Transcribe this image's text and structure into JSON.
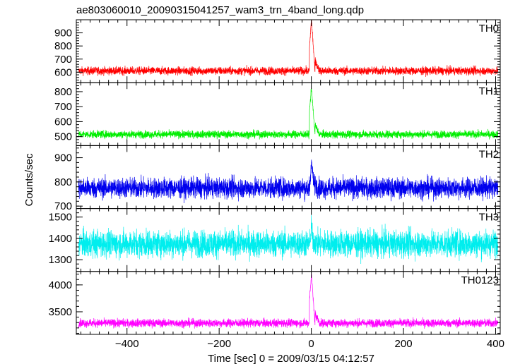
{
  "chart_data": {
    "type": "line",
    "title": "ae803060010_20090315041257_wam3_trn_4band_long.qdp",
    "xlabel": "Time [sec] 0 = 2009/03/15 04:12:57",
    "ylabel": "Counts/sec",
    "xlim": [
      -510,
      410
    ],
    "x_ticks": [
      -400,
      -200,
      0,
      200,
      400
    ],
    "x_tick_labels": [
      "−400",
      "−200",
      "0",
      "200",
      "400"
    ],
    "grid": false,
    "panels": [
      {
        "label": "TH0",
        "color": "#ff0000",
        "ylim": [
          520,
          1000
        ],
        "yticks": [
          600,
          700,
          800,
          900
        ],
        "ytick_labels": [
          "600",
          "700",
          "800",
          "900"
        ],
        "baseline": 610,
        "noise": 22,
        "peak": 1000,
        "burst_start": -4,
        "burst_end": 8
      },
      {
        "label": "TH1",
        "color": "#00ee00",
        "ylim": [
          440,
          860
        ],
        "yticks": [
          500,
          600,
          700,
          800
        ],
        "ytick_labels": [
          "500",
          "600",
          "700",
          "800"
        ],
        "baseline": 515,
        "noise": 18,
        "peak": 830,
        "burst_start": -4,
        "burst_end": 8
      },
      {
        "label": "TH2",
        "color": "#0000ee",
        "ylim": [
          690,
          950
        ],
        "yticks": [
          700,
          800,
          900
        ],
        "ytick_labels": [
          "700",
          "800",
          "900"
        ],
        "baseline": 775,
        "noise": 30,
        "peak": 880,
        "burst_start": -2,
        "burst_end": 6
      },
      {
        "label": "TH3",
        "color": "#00eeee",
        "ylim": [
          1245,
          1540
        ],
        "yticks": [
          1300,
          1400,
          1500
        ],
        "ytick_labels": [
          "1300",
          "1400",
          "1500"
        ],
        "baseline": 1375,
        "noise": 45,
        "peak": 1460,
        "burst_start": -2,
        "burst_end": 4
      },
      {
        "label": "TH0123",
        "color": "#ff00ff",
        "ylim": [
          3080,
          4250
        ],
        "yticks": [
          3500,
          4000
        ],
        "ytick_labels": [
          "3500",
          "4000"
        ],
        "baseline": 3290,
        "noise": 55,
        "peak": 4200,
        "burst_start": -4,
        "burst_end": 8
      }
    ]
  }
}
